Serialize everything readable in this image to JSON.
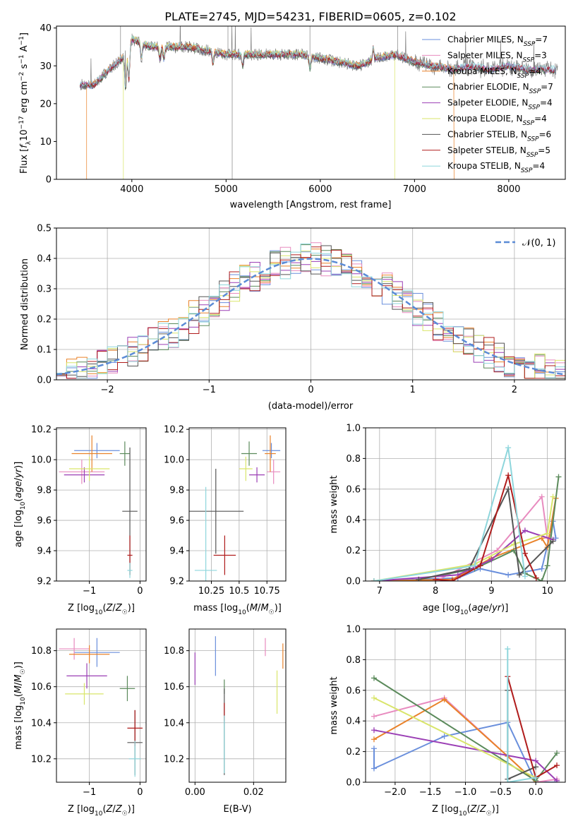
{
  "figure": {
    "title": "PLATE=2745, MJD=54231, FIBERID=0605, z=0.102"
  },
  "palette": {
    "Chabrier MILES": "#6a8fdc",
    "Salpeter MILES": "#e88bbf",
    "Kroupa MILES": "#e9822a",
    "Chabrier ELODIE": "#5b8a5b",
    "Salpeter ELODIE": "#9b3fb5",
    "Kroupa ELODIE": "#d9e56a",
    "Chabrier STELIB": "#555555",
    "Salpeter STELIB": "#b01c1c",
    "Kroupa STELIB": "#8ed6dc"
  },
  "chart_data": [
    {
      "id": "spectrum",
      "type": "line",
      "title": "PLATE=2745, MJD=54231, FIBERID=0605, z=0.102",
      "xlabel": "wavelength [Angstrom, rest frame]",
      "ylabel": "Flux [f_λ10^-17 erg cm^-2 s^-1 A^-1]",
      "xlim": [
        3200,
        8600
      ],
      "ylim": [
        0,
        40.5
      ],
      "xticks": [
        4000,
        5000,
        6000,
        7000,
        8000
      ],
      "yticks": [
        0,
        10,
        20,
        30,
        40
      ],
      "grid": false,
      "legend_position": "top-right",
      "continuum": {
        "x": [
          3400,
          3600,
          3800,
          3950,
          4000,
          4200,
          4400,
          4600,
          4800,
          5000,
          5200,
          5400,
          5600,
          5800,
          6000,
          6200,
          6400,
          6600,
          6800,
          7000,
          7200,
          7400,
          7600,
          7800,
          8000,
          8200,
          8500
        ],
        "y": [
          25,
          25,
          30,
          33,
          37,
          35,
          35,
          35,
          34,
          33,
          33,
          33,
          33,
          33,
          32,
          31,
          30,
          32,
          33,
          31,
          30,
          29,
          30,
          29,
          30,
          29,
          29
        ]
      },
      "legend": [
        {
          "name": "Chabrier MILES",
          "nssp": "7"
        },
        {
          "name": "Salpeter MILES",
          "nssp": "3"
        },
        {
          "name": "Kroupa MILES",
          "nssp": "4"
        },
        {
          "name": "Chabrier ELODIE",
          "nssp": "7"
        },
        {
          "name": "Salpeter ELODIE",
          "nssp": "4"
        },
        {
          "name": "Kroupa ELODIE",
          "nssp": "4"
        },
        {
          "name": "Chabrier STELIB",
          "nssp": "6"
        },
        {
          "name": "Salpeter STELIB",
          "nssp": "5"
        },
        {
          "name": "Kroupa STELIB",
          "nssp": "4"
        }
      ],
      "series_cutoffs": [
        {
          "name": "Kroupa MILES",
          "from": 3520,
          "to": 7420
        },
        {
          "name": "Kroupa ELODIE",
          "from": 3910,
          "to": 6790
        }
      ]
    },
    {
      "id": "residuals",
      "type": "histogram",
      "xlabel": "(data-model)/error",
      "ylabel": "Normed distribution",
      "xlim": [
        -2.5,
        2.5
      ],
      "ylim": [
        0,
        0.5
      ],
      "xticks": [
        -2,
        -1,
        0,
        1,
        2
      ],
      "yticks": [
        0.0,
        0.1,
        0.2,
        0.3,
        0.4,
        0.5
      ],
      "grid": true,
      "legend_position": "top-right",
      "gaussian_label": "𝒩(0, 1)",
      "bin_width": 0.1
    },
    {
      "id": "age-vs-Z",
      "type": "errorbar",
      "xlabel": "Z [log10(Z/Z☉)]",
      "ylabel": "age [log10(age/yr)]",
      "xlim": [
        -1.65,
        0.12
      ],
      "ylim": [
        9.2,
        10.21
      ],
      "xticks": [
        -1,
        0
      ],
      "yticks": [
        9.2,
        9.4,
        9.6,
        9.8,
        10.0,
        10.2
      ],
      "grid": true,
      "points": [
        {
          "series": "Chabrier MILES",
          "x": -0.85,
          "xerr": 0.45,
          "y": 10.06,
          "yerr": 0.05
        },
        {
          "series": "Salpeter MILES",
          "x": -1.15,
          "xerr": 0.45,
          "y": 9.92,
          "yerr": 0.08
        },
        {
          "series": "Kroupa MILES",
          "x": -0.95,
          "xerr": 0.4,
          "y": 10.04,
          "yerr": 0.12
        },
        {
          "series": "Chabrier ELODIE",
          "x": -0.3,
          "xerr": 0.1,
          "y": 10.04,
          "yerr": 0.08
        },
        {
          "series": "Salpeter ELODIE",
          "x": -1.1,
          "xerr": 0.4,
          "y": 9.9,
          "yerr": 0.05
        },
        {
          "series": "Kroupa ELODIE",
          "x": -1.0,
          "xerr": 0.4,
          "y": 9.94,
          "yerr": 0.08
        },
        {
          "series": "Chabrier STELIB",
          "x": -0.2,
          "xerr": 0.15,
          "y": 9.66,
          "yerr": 0.42
        },
        {
          "series": "Salpeter STELIB",
          "x": -0.2,
          "xerr": 0.05,
          "y": 9.37,
          "yerr": 0.13
        },
        {
          "series": "Kroupa STELIB",
          "x": -0.2,
          "xerr": 0.05,
          "y": 9.27,
          "yerr": 0.05
        }
      ]
    },
    {
      "id": "age-vs-mass",
      "type": "errorbar",
      "xlabel": "mass [log10(M/M☉)]",
      "ylabel": "",
      "xlim": [
        10.05,
        10.92
      ],
      "ylim": [
        9.2,
        10.21
      ],
      "xticks": [
        10.25,
        10.5,
        10.75
      ],
      "yticks": [
        9.2,
        9.4,
        9.6,
        9.8,
        10.0,
        10.2
      ],
      "grid": true,
      "points": [
        {
          "series": "Chabrier MILES",
          "x": 10.79,
          "xerr": 0.08,
          "y": 10.06,
          "yerr": 0.05
        },
        {
          "series": "Salpeter MILES",
          "x": 10.81,
          "xerr": 0.06,
          "y": 9.92,
          "yerr": 0.08
        },
        {
          "series": "Kroupa MILES",
          "x": 10.78,
          "xerr": 0.05,
          "y": 10.04,
          "yerr": 0.12
        },
        {
          "series": "Chabrier ELODIE",
          "x": 10.59,
          "xerr": 0.07,
          "y": 10.04,
          "yerr": 0.08
        },
        {
          "series": "Salpeter ELODIE",
          "x": 10.66,
          "xerr": 0.07,
          "y": 9.9,
          "yerr": 0.05
        },
        {
          "series": "Kroupa ELODIE",
          "x": 10.56,
          "xerr": 0.06,
          "y": 9.94,
          "yerr": 0.08
        },
        {
          "series": "Chabrier STELIB",
          "x": 10.29,
          "xerr": 0.25,
          "y": 9.66,
          "yerr": 0.28
        },
        {
          "series": "Salpeter STELIB",
          "x": 10.37,
          "xerr": 0.1,
          "y": 9.37,
          "yerr": 0.13
        },
        {
          "series": "Kroupa STELIB",
          "x": 10.2,
          "xerr": 0.1,
          "y": 9.27,
          "yerr": 0.55
        }
      ]
    },
    {
      "id": "weight-vs-age",
      "type": "line",
      "xlabel": "age [log10(age/yr)]",
      "ylabel": "mass weight",
      "xlim": [
        6.75,
        10.32
      ],
      "ylim": [
        0,
        1.0
      ],
      "xticks": [
        7,
        8,
        9,
        10
      ],
      "yticks": [
        0.0,
        0.2,
        0.4,
        0.6,
        0.8,
        1.0
      ],
      "grid": true,
      "series": [
        {
          "name": "Chabrier MILES",
          "x": [
            6.9,
            8.4,
            8.8,
            9.3,
            9.9,
            10.1,
            10.15
          ],
          "y": [
            0.0,
            0.02,
            0.08,
            0.04,
            0.08,
            0.39,
            0.28
          ]
        },
        {
          "name": "Salpeter MILES",
          "x": [
            6.9,
            8.0,
            9.1,
            9.9,
            10.0
          ],
          "y": [
            0.0,
            0.0,
            0.2,
            0.55,
            0.28
          ]
        },
        {
          "name": "Kroupa MILES",
          "x": [
            6.9,
            8.3,
            9.0,
            9.9,
            10.0,
            10.15
          ],
          "y": [
            0.0,
            0.01,
            0.15,
            0.28,
            0.22,
            0.54
          ]
        },
        {
          "name": "Chabrier ELODIE",
          "x": [
            7.7,
            8.7,
            9.4,
            9.6,
            9.9,
            10.0,
            10.2
          ],
          "y": [
            0.01,
            0.08,
            0.2,
            0.05,
            0.0,
            0.1,
            0.68
          ]
        },
        {
          "name": "Salpeter ELODIE",
          "x": [
            6.9,
            8.4,
            9.0,
            9.6,
            10.1
          ],
          "y": [
            0.0,
            0.04,
            0.14,
            0.33,
            0.27
          ]
        },
        {
          "name": "Kroupa ELODIE",
          "x": [
            6.9,
            8.7,
            9.4,
            10.0,
            10.1
          ],
          "y": [
            0.0,
            0.11,
            0.24,
            0.31,
            0.55
          ]
        },
        {
          "name": "Chabrier STELIB",
          "x": [
            7.7,
            8.6,
            9.3,
            9.5,
            10.1
          ],
          "y": [
            0.01,
            0.08,
            0.6,
            0.04,
            0.26
          ]
        },
        {
          "name": "Salpeter STELIB",
          "x": [
            8.0,
            8.3,
            8.8,
            9.3,
            9.6,
            9.8
          ],
          "y": [
            0.01,
            0.0,
            0.1,
            0.69,
            0.18,
            0.02
          ]
        },
        {
          "name": "Kroupa STELIB",
          "x": [
            6.9,
            8.7,
            9.3,
            9.6
          ],
          "y": [
            0.0,
            0.1,
            0.87,
            0.03
          ]
        }
      ]
    },
    {
      "id": "mass-vs-Z",
      "type": "errorbar",
      "xlabel": "Z [log10(Z/Z☉)]",
      "ylabel": "mass [log10(M/M☉)]",
      "xlim": [
        -1.65,
        0.12
      ],
      "ylim": [
        10.07,
        10.92
      ],
      "xticks": [
        -1,
        0
      ],
      "yticks": [
        10.2,
        10.4,
        10.6,
        10.8
      ],
      "grid": true,
      "points": [
        {
          "series": "Chabrier MILES",
          "x": -0.85,
          "xerr": 0.45,
          "y": 10.79,
          "yerr": 0.08
        },
        {
          "series": "Salpeter MILES",
          "x": -1.3,
          "xerr": 0.3,
          "y": 10.81,
          "yerr": 0.06
        },
        {
          "series": "Kroupa MILES",
          "x": -1.0,
          "xerr": 0.4,
          "y": 10.78,
          "yerr": 0.05
        },
        {
          "series": "Chabrier ELODIE",
          "x": -0.25,
          "xerr": 0.15,
          "y": 10.59,
          "yerr": 0.07
        },
        {
          "series": "Salpeter ELODIE",
          "x": -1.05,
          "xerr": 0.4,
          "y": 10.66,
          "yerr": 0.07
        },
        {
          "series": "Kroupa ELODIE",
          "x": -1.1,
          "xerr": 0.38,
          "y": 10.56,
          "yerr": 0.06
        },
        {
          "series": "Chabrier STELIB",
          "x": -0.1,
          "xerr": 0.15,
          "y": 10.29,
          "yerr": 0.18
        },
        {
          "series": "Salpeter STELIB",
          "x": -0.1,
          "xerr": 0.15,
          "y": 10.37,
          "yerr": 0.1
        },
        {
          "series": "Kroupa STELIB",
          "x": -0.1,
          "xerr": 0.12,
          "y": 10.2,
          "yerr": 0.1
        }
      ]
    },
    {
      "id": "mass-vs-ebv",
      "type": "errorbar",
      "xlabel": "E(B-V)",
      "ylabel": "",
      "xlim": [
        -0.002,
        0.031
      ],
      "ylim": [
        10.07,
        10.92
      ],
      "xticks": [
        0.0,
        0.02
      ],
      "yticks": [
        10.2,
        10.4,
        10.6,
        10.8
      ],
      "grid": true,
      "points": [
        {
          "series": "Chabrier MILES",
          "x": 0.007,
          "xerr": 0,
          "y": 10.77,
          "yerr": 0.11
        },
        {
          "series": "Salpeter MILES",
          "x": 0.024,
          "xerr": 0,
          "y": 10.82,
          "yerr": 0.05
        },
        {
          "series": "Kroupa MILES",
          "x": 0.03,
          "xerr": 0,
          "y": 10.77,
          "yerr": 0.07
        },
        {
          "series": "Chabrier ELODIE",
          "x": 0.01,
          "xerr": 0,
          "y": 10.6,
          "yerr": 0.04
        },
        {
          "series": "Salpeter ELODIE",
          "x": 0.0,
          "xerr": 0,
          "y": 10.7,
          "yerr": 0.09
        },
        {
          "series": "Kroupa ELODIE",
          "x": 0.028,
          "xerr": 0,
          "y": 10.57,
          "yerr": 0.12
        },
        {
          "series": "Chabrier STELIB",
          "x": 0.01,
          "xerr": 0,
          "y": 10.35,
          "yerr": 0.24
        },
        {
          "series": "Salpeter STELIB",
          "x": 0.01,
          "xerr": 0,
          "y": 10.46,
          "yerr": 0.05
        },
        {
          "series": "Kroupa STELIB",
          "x": 0.01,
          "xerr": 0,
          "y": 10.28,
          "yerr": 0.16
        }
      ]
    },
    {
      "id": "weight-vs-Z",
      "type": "line",
      "xlabel": "Z [log10(Z/Z☉)]",
      "ylabel": "mass weight",
      "xlim": [
        -2.42,
        0.42
      ],
      "ylim": [
        0,
        1.0
      ],
      "xticks": [
        -2.0,
        -1.5,
        -1.0,
        -0.5,
        0.0
      ],
      "yticks": [
        0.0,
        0.2,
        0.4,
        0.6,
        0.8,
        1.0
      ],
      "grid": true,
      "series": [
        {
          "name": "Chabrier MILES",
          "x": [
            -2.3,
            -2.3,
            -1.3,
            -0.4,
            0.0,
            0.3
          ],
          "y": [
            0.22,
            0.09,
            0.3,
            0.39,
            0.0,
            0.0
          ]
        },
        {
          "name": "Salpeter MILES",
          "x": [
            -2.3,
            -1.3,
            0.0,
            0.3
          ],
          "y": [
            0.43,
            0.55,
            0.0,
            0.02
          ]
        },
        {
          "name": "Kroupa MILES",
          "x": [
            -2.3,
            -1.3,
            -0.4,
            0.0
          ],
          "y": [
            0.28,
            0.54,
            0.17,
            0.0
          ]
        },
        {
          "name": "Chabrier ELODIE",
          "x": [
            -2.3,
            0.0,
            0.3
          ],
          "y": [
            0.68,
            0.01,
            0.19
          ]
        },
        {
          "name": "Salpeter ELODIE",
          "x": [
            -2.3,
            0.0,
            0.3
          ],
          "y": [
            0.34,
            0.14,
            0.01
          ]
        },
        {
          "name": "Kroupa ELODIE",
          "x": [
            -2.3,
            0.0
          ],
          "y": [
            0.55,
            0.03
          ]
        },
        {
          "name": "Chabrier STELIB",
          "x": [
            -0.4,
            -0.4,
            0.0
          ],
          "y": [
            0.6,
            0.02,
            0.1
          ]
        },
        {
          "name": "Salpeter STELIB",
          "x": [
            -0.4,
            0.0,
            0.3
          ],
          "y": [
            0.69,
            0.03,
            0.11
          ]
        },
        {
          "name": "Kroupa STELIB",
          "x": [
            -0.4,
            -0.4,
            0.0
          ],
          "y": [
            0.87,
            0.0,
            0.03
          ]
        }
      ]
    }
  ]
}
